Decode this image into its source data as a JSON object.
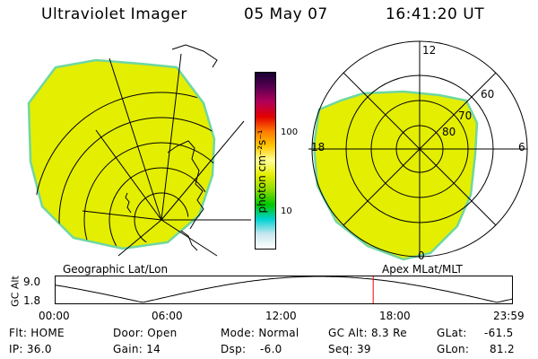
{
  "header": {
    "title": "Ultraviolet Imager",
    "date": "05 May 07",
    "time": "16:41:20 UT"
  },
  "colors": {
    "fill": "#e4ee00",
    "edge": "#6fd7a0",
    "lines": "#000000",
    "cursor": "#ff0000"
  },
  "colorbar": {
    "unit": "photon cm⁻²s⁻¹",
    "ticks": [
      "100",
      "10"
    ],
    "stops": [
      "#ffffff",
      "#c8e6f0",
      "#00d2d2",
      "#00c800",
      "#8cdc00",
      "#e4ee00",
      "#ffff99",
      "#ffc800",
      "#ff7800",
      "#e10000",
      "#b4005a",
      "#5a0050",
      "#140032"
    ]
  },
  "left_panel": {
    "label": "Geographic Lat/Lon"
  },
  "right_panel": {
    "label": "Apex MLat/MLT",
    "mlt_labels": {
      "top": "12",
      "left": "18",
      "right": "6",
      "bottom": "0"
    },
    "mlat_labels": [
      "60",
      "70",
      "80"
    ]
  },
  "altitude_plot": {
    "ylabel": "GC Alt",
    "ymax": "9.0",
    "ymin": "1.8",
    "xticks": [
      "00:00",
      "06:00",
      "12:00",
      "18:00",
      "23:59"
    ],
    "cursor_hours": 16.69
  },
  "footer": {
    "flt": "Flt: HOME",
    "ip": "IP: 36.0",
    "door": "Door: Open",
    "gain": "Gain: 14",
    "mode": "Mode: Normal",
    "dsp_label": "Dsp:",
    "dsp_value": "-6.0",
    "gcalt": "GC Alt: 8.3 Re",
    "seq": "Seq: 39",
    "glat_label": "GLat:",
    "glat_value": "-61.5",
    "glon_label": "GLon:",
    "glon_value": "81.2"
  }
}
